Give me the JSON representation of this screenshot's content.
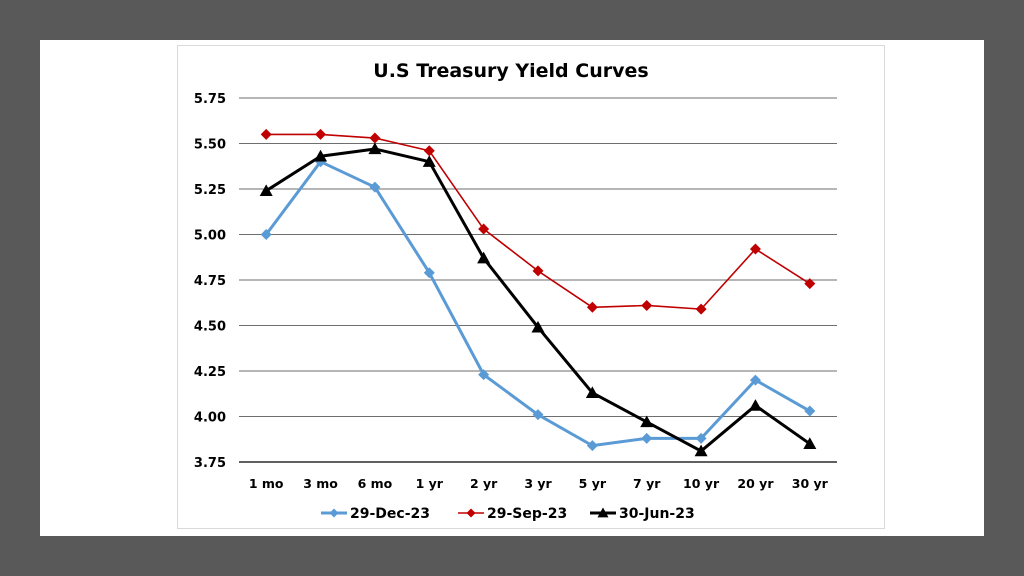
{
  "chart_data": {
    "type": "line",
    "title": "U.S Treasury Yield Curves",
    "xlabel": "",
    "ylabel": "",
    "categories": [
      "1 mo",
      "3 mo",
      "6 mo",
      "1 yr",
      "2 yr",
      "3 yr",
      "5 yr",
      "7 yr",
      "10 yr",
      "20 yr",
      "30 yr"
    ],
    "ylim": [
      3.75,
      5.75
    ],
    "yticks": [
      "3.75",
      "4.00",
      "4.25",
      "4.50",
      "4.75",
      "5.00",
      "5.25",
      "5.50",
      "5.75"
    ],
    "grid": true,
    "legend_position": "bottom",
    "series": [
      {
        "name": "29-Dec-23",
        "color": "#5b9bd5",
        "marker": "diamond",
        "values": [
          5.0,
          5.4,
          5.26,
          4.79,
          4.23,
          4.01,
          3.84,
          3.88,
          3.88,
          4.2,
          4.03
        ]
      },
      {
        "name": "29-Sep-23",
        "color": "#c00000",
        "marker": "diamond",
        "values": [
          5.55,
          5.55,
          5.53,
          5.46,
          5.03,
          4.8,
          4.6,
          4.61,
          4.59,
          4.92,
          4.73
        ]
      },
      {
        "name": "30-Jun-23",
        "color": "#000000",
        "marker": "triangle",
        "values": [
          5.24,
          5.43,
          5.47,
          5.4,
          4.87,
          4.49,
          4.13,
          3.97,
          3.81,
          4.06,
          3.85
        ]
      }
    ]
  }
}
